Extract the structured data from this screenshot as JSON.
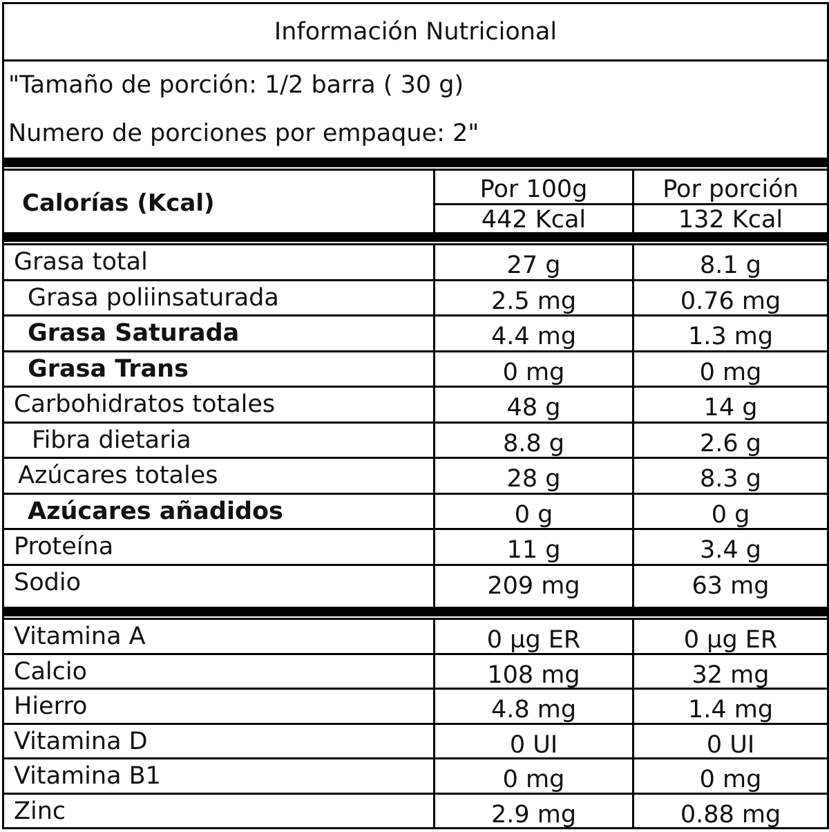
{
  "header": {
    "title": "Información Nutricional",
    "serving_size": "\"Tamaño de porción: 1/2 barra ( 30 g)",
    "servings_per_package": "Numero de porciones por empaque: 2\""
  },
  "calories": {
    "label": "Calorías (Kcal)",
    "col1_header": "Por 100g",
    "col2_header": "Por porción",
    "col1_value": "442 Kcal",
    "col2_value": "132 Kcal"
  },
  "nutrients": [
    {
      "name": "Grasa total",
      "per100": "27 g",
      "per_serving": "8.1 g"
    },
    {
      "name": "Grasa poliinsaturada",
      "per100": "2.5 mg",
      "per_serving": "0.76 mg"
    },
    {
      "name": "Grasa Saturada",
      "per100": "4.4 mg",
      "per_serving": "1.3 mg"
    },
    {
      "name": "Grasa Trans",
      "per100": "0 mg",
      "per_serving": "0 mg"
    },
    {
      "name": "Carbohidratos totales",
      "per100": "48 g",
      "per_serving": "14 g"
    },
    {
      "name": "Fibra dietaria",
      "per100": "8.8 g",
      "per_serving": "2.6 g"
    },
    {
      "name": "Azúcares totales",
      "per100": "28 g",
      "per_serving": "8.3 g"
    },
    {
      "name": "Azúcares añadidos",
      "per100": "0 g",
      "per_serving": "0 g"
    },
    {
      "name": "Proteína",
      "per100": "11 g",
      "per_serving": "3.4 g"
    },
    {
      "name": "Sodio",
      "per100": "209 mg",
      "per_serving": "63 mg"
    }
  ],
  "vitamins": [
    {
      "name": "Vitamina A",
      "per100": "0 µg ER",
      "per_serving": "0 µg ER"
    },
    {
      "name": "Calcio",
      "per100": "108 mg",
      "per_serving": "32 mg"
    },
    {
      "name": "Hierro",
      "per100": "4.8 mg",
      "per_serving": "1.4 mg"
    },
    {
      "name": "Vitamina D",
      "per100": "0 UI",
      "per_serving": "0 UI"
    },
    {
      "name": "Vitamina B1",
      "per100": "0 mg",
      "per_serving": "0 mg"
    },
    {
      "name": "Zinc",
      "per100": "2.9 mg",
      "per_serving": "0.88 mg"
    }
  ]
}
